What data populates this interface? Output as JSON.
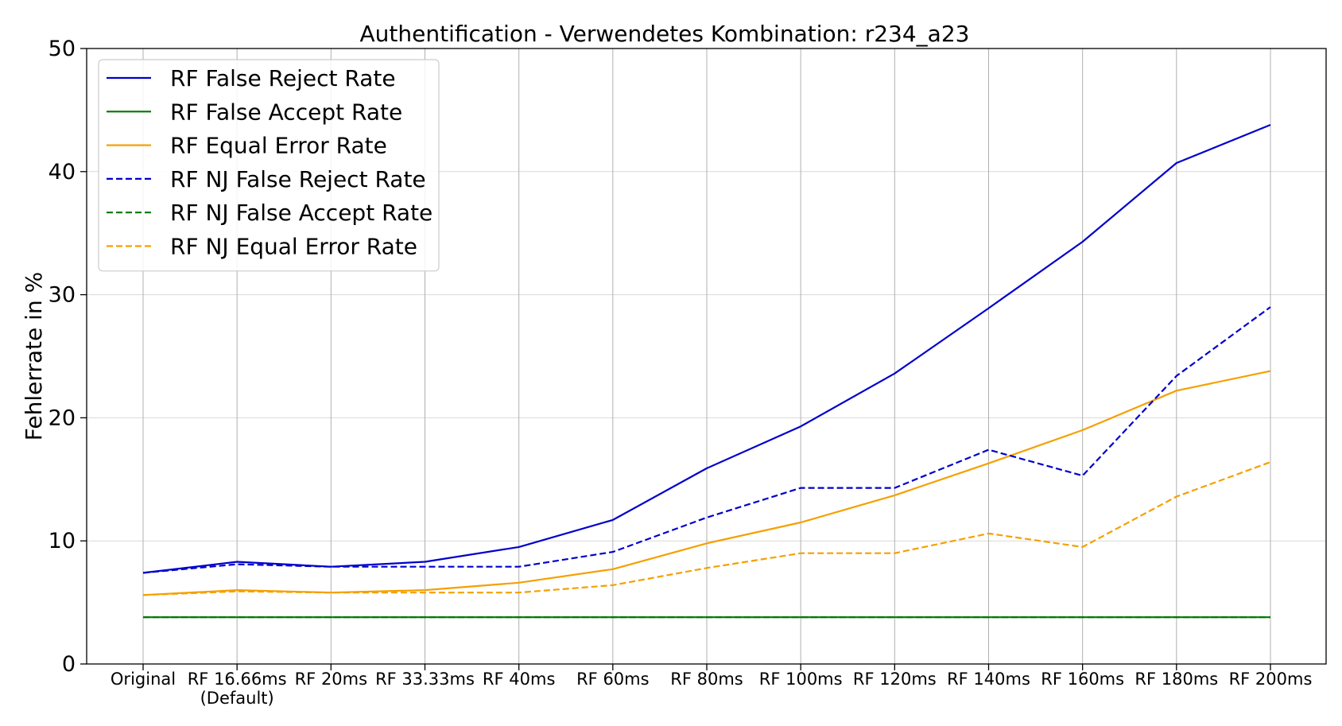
{
  "chart_data": {
    "type": "line",
    "title": "Authentification - Verwendetes Kombination: r234_a23",
    "xlabel": "",
    "ylabel": "Fehlerrate in %",
    "ylim": [
      0,
      50
    ],
    "yticks": [
      0,
      10,
      20,
      30,
      40,
      50
    ],
    "grid": true,
    "legend_position": "top-left",
    "categories": [
      "Original",
      "RF 16.66ms\n(Default)",
      "RF 20ms",
      "RF 33.33ms",
      "RF 40ms",
      "RF 60ms",
      "RF 80ms",
      "RF 100ms",
      "RF 120ms",
      "RF 140ms",
      "RF 160ms",
      "RF 180ms",
      "RF 200ms"
    ],
    "series": [
      {
        "name": "RF False Reject Rate",
        "color": "#0000cc",
        "dash": "solid",
        "values": [
          7.4,
          8.3,
          7.9,
          8.3,
          9.5,
          11.7,
          15.9,
          19.3,
          23.6,
          28.9,
          34.3,
          40.7,
          43.8
        ]
      },
      {
        "name": "RF False Accept Rate",
        "color": "#007700",
        "dash": "solid",
        "values": [
          3.8,
          3.8,
          3.8,
          3.8,
          3.8,
          3.8,
          3.8,
          3.8,
          3.8,
          3.8,
          3.8,
          3.8,
          3.8
        ]
      },
      {
        "name": "RF Equal Error Rate",
        "color": "#f5a000",
        "dash": "solid",
        "values": [
          5.6,
          6.0,
          5.8,
          6.0,
          6.6,
          7.7,
          9.8,
          11.5,
          13.7,
          16.3,
          19.0,
          22.2,
          23.8
        ]
      },
      {
        "name": "RF NJ False Reject Rate",
        "color": "#0000cc",
        "dash": "dashed",
        "values": [
          7.4,
          8.1,
          7.9,
          7.9,
          7.9,
          9.1,
          11.9,
          14.3,
          14.3,
          17.4,
          15.3,
          23.4,
          29.0
        ]
      },
      {
        "name": "RF NJ False Accept Rate",
        "color": "#007700",
        "dash": "dashed",
        "values": [
          3.8,
          3.8,
          3.8,
          3.8,
          3.8,
          3.8,
          3.8,
          3.8,
          3.8,
          3.8,
          3.8,
          3.8,
          3.8
        ]
      },
      {
        "name": "RF NJ Equal Error Rate",
        "color": "#f5a000",
        "dash": "dashed",
        "values": [
          5.6,
          5.9,
          5.8,
          5.8,
          5.8,
          6.4,
          7.8,
          9.0,
          9.0,
          10.6,
          9.5,
          13.6,
          16.4
        ]
      }
    ]
  }
}
